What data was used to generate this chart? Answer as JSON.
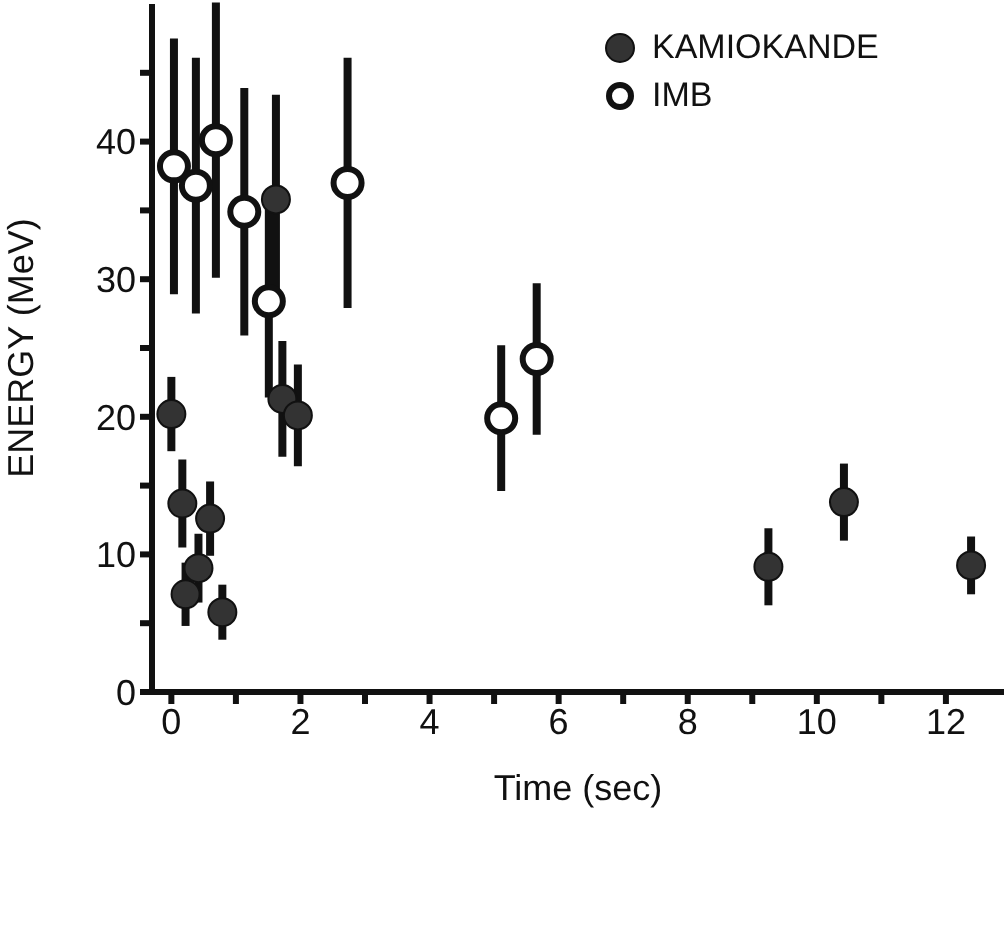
{
  "chart_data": {
    "type": "scatter",
    "xlabel": "Time (sec)",
    "ylabel": "ENERGY (MeV)",
    "xlim": [
      -0.3,
      12.9
    ],
    "xticks": [
      0,
      {
        "value": 1,
        "label": null
      },
      2,
      {
        "value": 3,
        "label": null
      },
      4,
      {
        "value": 5,
        "label": null
      },
      6,
      {
        "value": 7,
        "label": null
      },
      8,
      {
        "value": 9,
        "label": null
      },
      10,
      {
        "value": 11,
        "label": null
      },
      12
    ],
    "ylim": [
      0,
      50
    ],
    "yticks": [
      0,
      {
        "value": 5,
        "label": null
      },
      10,
      {
        "value": 15,
        "label": null
      },
      20,
      {
        "value": 25,
        "label": null
      },
      30,
      {
        "value": 35,
        "label": null
      },
      40,
      {
        "value": 45,
        "label": null
      }
    ],
    "series": [
      {
        "name": "KAMIOKANDE",
        "color": "#333333",
        "marker": "circle",
        "x": [
          0.0,
          0.17,
          0.22,
          0.42,
          0.6,
          0.79,
          1.62,
          1.72,
          1.96,
          9.25,
          10.42,
          12.39
        ],
        "values": [
          20.2,
          13.7,
          7.1,
          9.0,
          12.6,
          5.8,
          35.8,
          21.3,
          20.1,
          9.1,
          13.8,
          9.2
        ],
        "errors": [
          2.7,
          3.2,
          2.3,
          2.5,
          2.7,
          2.0,
          7.6,
          4.2,
          3.7,
          2.8,
          2.8,
          2.1
        ]
      },
      {
        "name": "IMB",
        "color": "#ffffff",
        "marker": "circle",
        "x": [
          0.04,
          0.38,
          0.69,
          1.13,
          1.51,
          2.73,
          5.11,
          5.66
        ],
        "values": [
          38.2,
          36.8,
          40.1,
          34.9,
          28.4,
          37.0,
          19.9,
          24.2
        ],
        "errors": [
          9.3,
          9.3,
          10.0,
          9.0,
          7.0,
          9.1,
          5.3,
          5.5
        ]
      }
    ],
    "legend": "top right",
    "grid": false
  }
}
